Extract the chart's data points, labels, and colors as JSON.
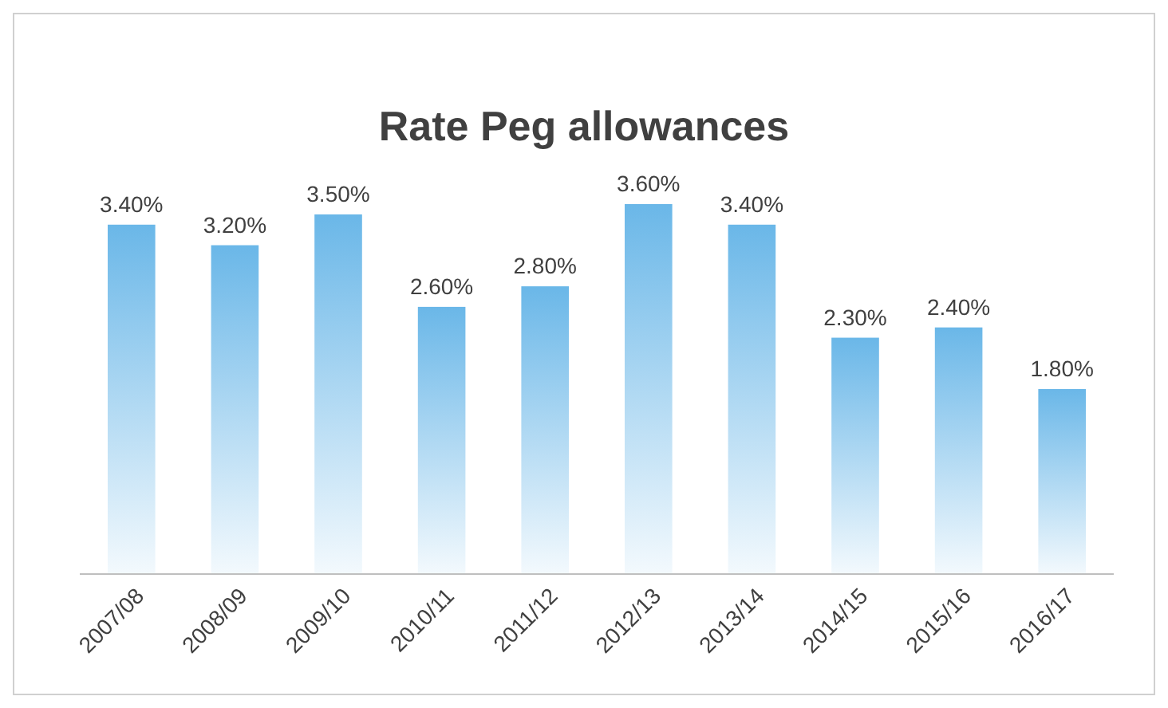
{
  "chart_data": {
    "type": "bar",
    "title": "Rate Peg allowances",
    "categories": [
      "2007/08",
      "2008/09",
      "2009/10",
      "2010/11",
      "2011/12",
      "2012/13",
      "2013/14",
      "2014/15",
      "2015/16",
      "2016/17"
    ],
    "values": [
      3.4,
      3.2,
      3.5,
      2.6,
      2.8,
      3.6,
      3.4,
      2.3,
      2.4,
      1.8
    ],
    "value_labels": [
      "3.40%",
      "3.20%",
      "3.50%",
      "2.60%",
      "2.80%",
      "3.60%",
      "3.40%",
      "2.30%",
      "2.40%",
      "1.80%"
    ],
    "color": "#6ab7e8"
  }
}
